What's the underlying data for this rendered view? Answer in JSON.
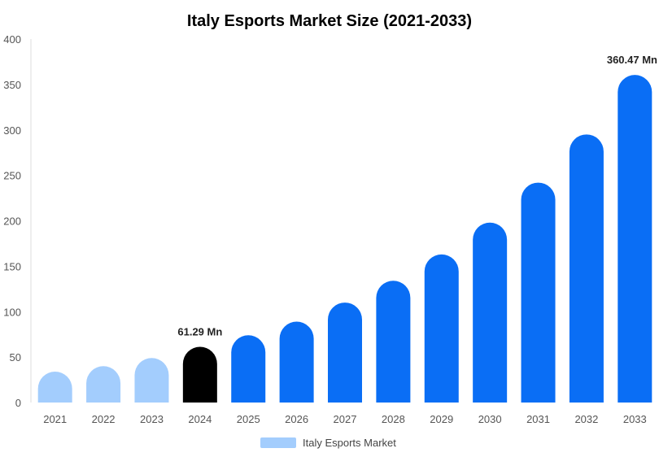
{
  "chart_data": {
    "type": "bar",
    "title": "Italy Esports Market Size (2021-2033)",
    "xlabel": "",
    "ylabel": "",
    "categories": [
      "2021",
      "2022",
      "2023",
      "2024",
      "2025",
      "2026",
      "2027",
      "2028",
      "2029",
      "2030",
      "2031",
      "2032",
      "2033"
    ],
    "series": [
      {
        "name": "Italy Esports Market",
        "values": [
          34,
          40,
          49,
          61.29,
          74,
          89,
          110,
          134,
          163,
          198,
          242,
          295,
          360.47
        ]
      }
    ],
    "yticks": [
      "0",
      "50",
      "100",
      "150",
      "200",
      "250",
      "300",
      "350",
      "400"
    ],
    "ylim": [
      0,
      400
    ],
    "grid": false,
    "legend_position": "bottom-center",
    "data_labels": [
      {
        "index": 3,
        "text": "61.29 Mn"
      },
      {
        "index": 12,
        "text": "360.47 Mn"
      }
    ],
    "colors": {
      "historic": "#a3cdfd",
      "base_year": "#000000",
      "forecast": "#0a6ef5",
      "legend": "#a3cdfd"
    },
    "historic_count": 3,
    "base_year_index": 3
  }
}
